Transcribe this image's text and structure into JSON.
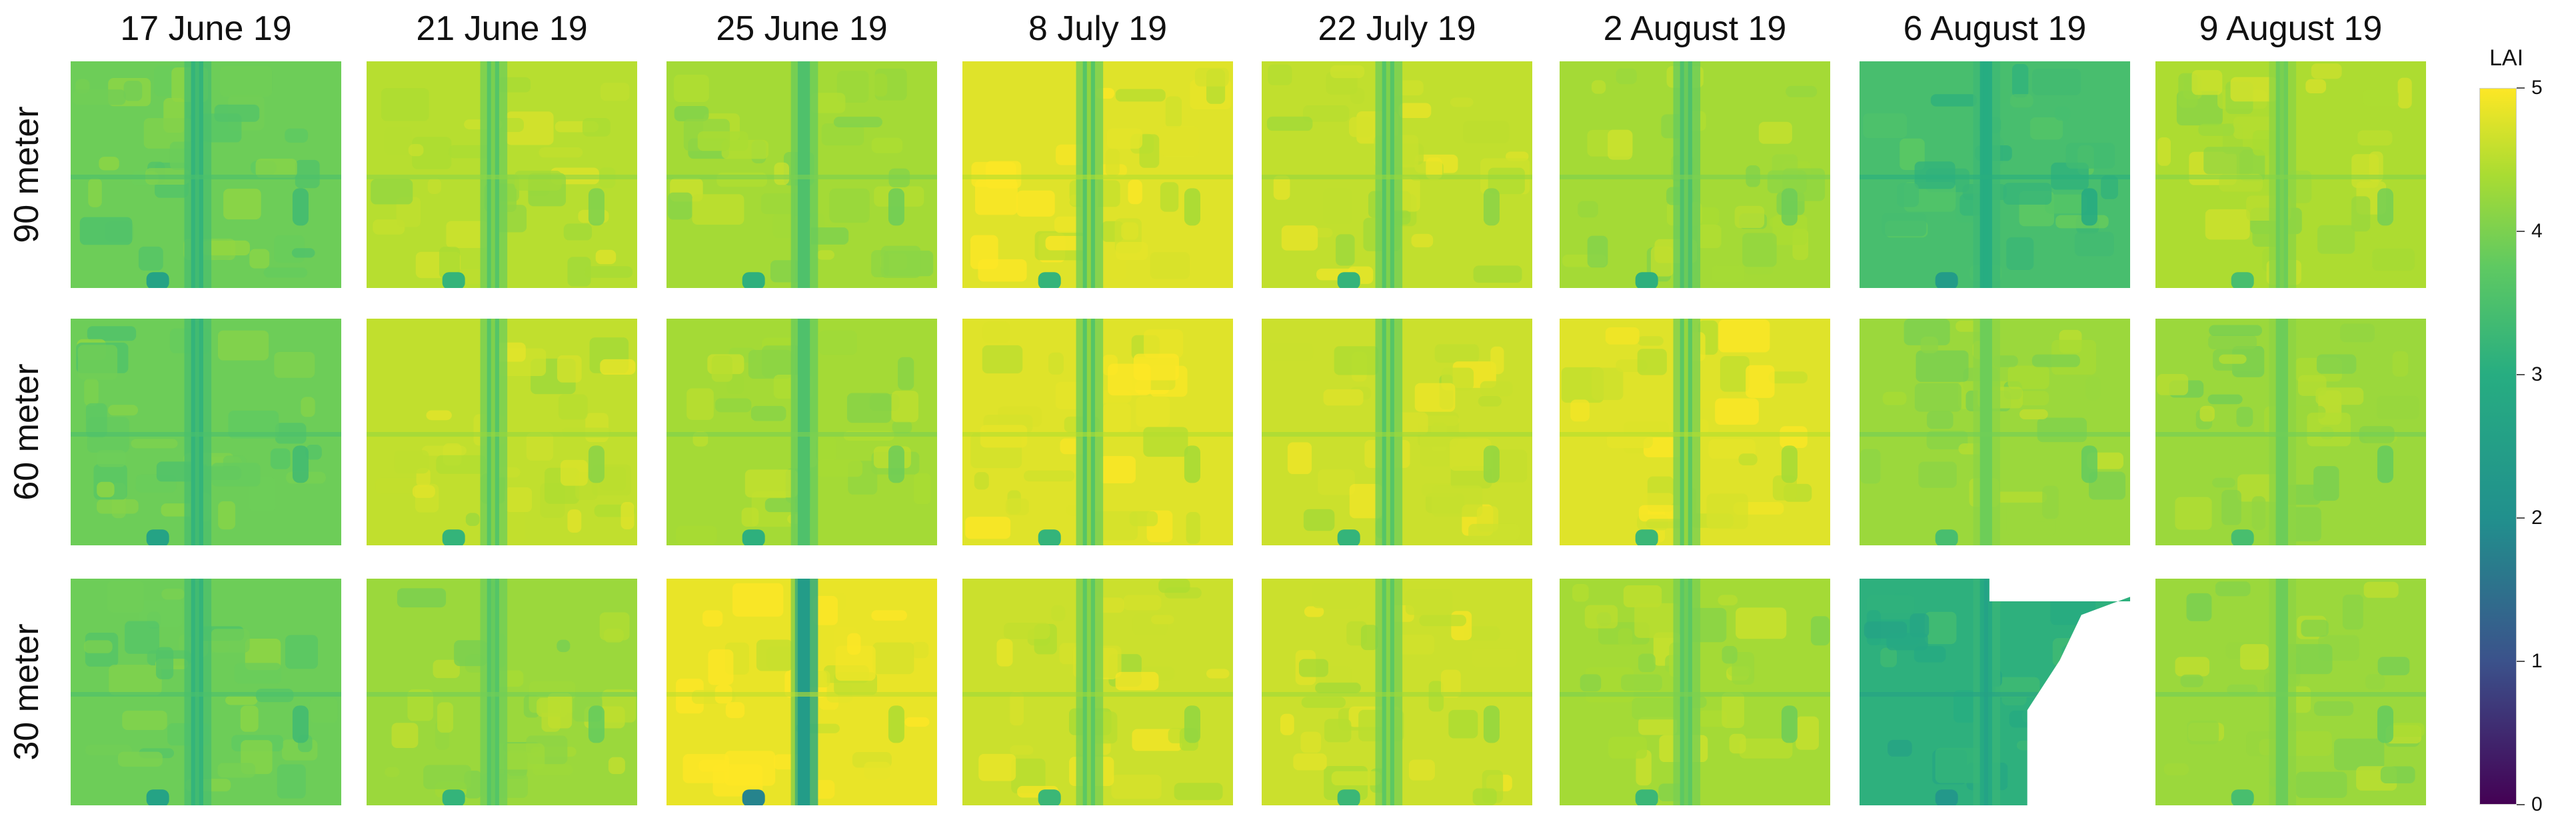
{
  "chart_data": {
    "type": "heatmap",
    "title": "",
    "columns": [
      "17 June 19",
      "21 June 19",
      "25 June 19",
      "8 July 19",
      "22 July 19",
      "2 August 19",
      "6 August 19",
      "9 August 19"
    ],
    "rows": [
      "90 meter",
      "60 meter",
      "30 meter"
    ],
    "colorbar": {
      "label": "LAI",
      "range": [
        0,
        5
      ],
      "ticks": [
        "0",
        "1",
        "2",
        "3",
        "4",
        "5"
      ],
      "colormap": [
        "#440154",
        "#3b528b",
        "#21908d",
        "#27ad81",
        "#5ec962",
        "#aadc32",
        "#fde725"
      ]
    },
    "approx_mean_lai": [
      [
        3.5,
        4.3,
        4.1,
        4.7,
        4.4,
        4.1,
        3.0,
        4.2
      ],
      [
        3.5,
        4.4,
        4.1,
        4.7,
        4.5,
        4.7,
        4.0,
        4.0
      ],
      [
        3.5,
        4.0,
        4.8,
        4.5,
        4.5,
        4.1,
        2.6,
        4.0
      ]
    ],
    "approx_stripe_lai": [
      [
        2.7,
        3.2,
        3.1,
        3.2,
        3.2,
        3.1,
        2.5,
        3.5
      ],
      [
        2.7,
        3.2,
        3.1,
        3.2,
        3.2,
        3.3,
        3.5,
        3.5
      ],
      [
        2.7,
        3.2,
        2.0,
        3.3,
        3.3,
        3.3,
        2.4,
        3.5
      ]
    ],
    "masked_cells": [
      [
        2,
        6
      ]
    ],
    "grid": false
  }
}
